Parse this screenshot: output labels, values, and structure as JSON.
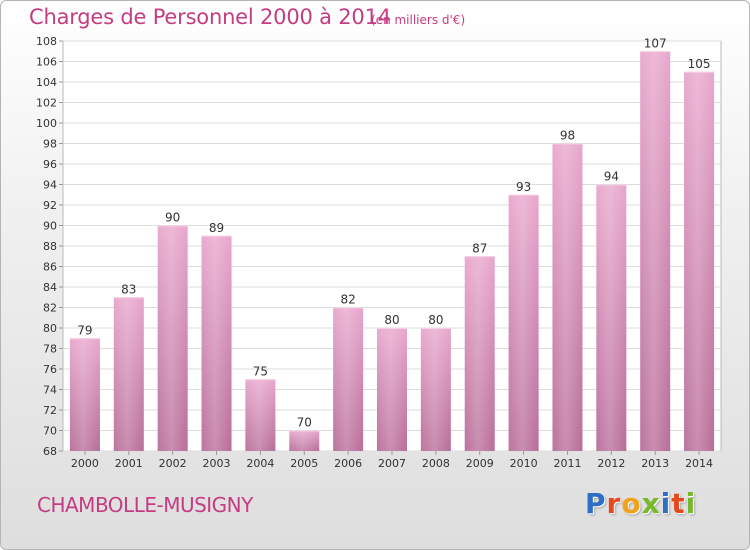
{
  "header": {
    "title": "Charges de Personnel 2000 à 2014",
    "unit": "(en milliers d'€)"
  },
  "footer": {
    "commune": "CHAMBOLLE-MUSIGNY",
    "brand_letters": [
      "P",
      "r",
      "o",
      "x",
      "i",
      "t",
      "i"
    ]
  },
  "colors": {
    "accent": "#c53c82",
    "bar": "#d98fb9",
    "brand": [
      "#2e6fc6",
      "#e5481c",
      "#f0a21b",
      "#77b82a",
      "#2e6fc6",
      "#e5481c",
      "#77b82a"
    ]
  },
  "chart_data": {
    "type": "bar",
    "title": "Charges de Personnel 2000 à 2014",
    "subtitle": "(en milliers d'€)",
    "categories": [
      "2000",
      "2001",
      "2002",
      "2003",
      "2004",
      "2005",
      "2006",
      "2007",
      "2008",
      "2009",
      "2010",
      "2011",
      "2012",
      "2013",
      "2014"
    ],
    "values": [
      79,
      83,
      90,
      89,
      75,
      70,
      82,
      80,
      80,
      87,
      93,
      98,
      94,
      107,
      105
    ],
    "data_labels": [
      "79",
      "83",
      "90",
      "89",
      "75",
      "70",
      "82",
      "80",
      "80",
      "87",
      "93",
      "98",
      "94",
      "107",
      "105"
    ],
    "ylim": [
      68,
      108
    ],
    "yticks": [
      "68",
      "70",
      "72",
      "74",
      "76",
      "78",
      "80",
      "82",
      "84",
      "86",
      "88",
      "90",
      "92",
      "94",
      "96",
      "98",
      "100",
      "102",
      "104",
      "106",
      "108"
    ],
    "grid": true,
    "legend": "none"
  }
}
